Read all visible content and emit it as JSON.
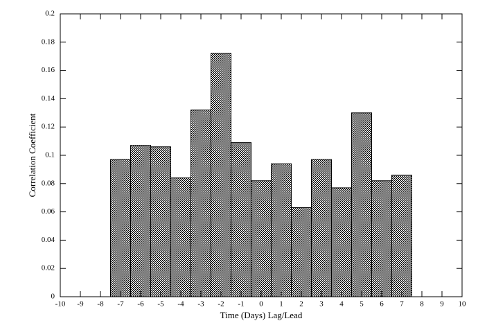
{
  "chart_data": {
    "type": "bar",
    "x": [
      -7,
      -6,
      -5,
      -4,
      -3,
      -2,
      -1,
      0,
      1,
      2,
      3,
      4,
      5,
      6,
      7
    ],
    "values": [
      0.097,
      0.107,
      0.106,
      0.084,
      0.132,
      0.172,
      0.109,
      0.082,
      0.094,
      0.063,
      0.097,
      0.077,
      0.13,
      0.082,
      0.086
    ],
    "color": "#000000",
    "xlabel": "Time (Days) Lag/Lead",
    "ylabel": "Correlation Coefficient",
    "xlim": [
      -10,
      10
    ],
    "xticks": [
      -10,
      -9,
      -8,
      -7,
      -6,
      -5,
      -4,
      -3,
      -2,
      -1,
      0,
      1,
      2,
      3,
      4,
      5,
      6,
      7,
      8,
      9,
      10
    ],
    "ylim": [
      0,
      0.2
    ],
    "yticks": [
      0,
      0.02,
      0.04,
      0.06,
      0.08,
      0.1,
      0.12,
      0.14,
      0.16,
      0.18,
      0.2
    ]
  }
}
